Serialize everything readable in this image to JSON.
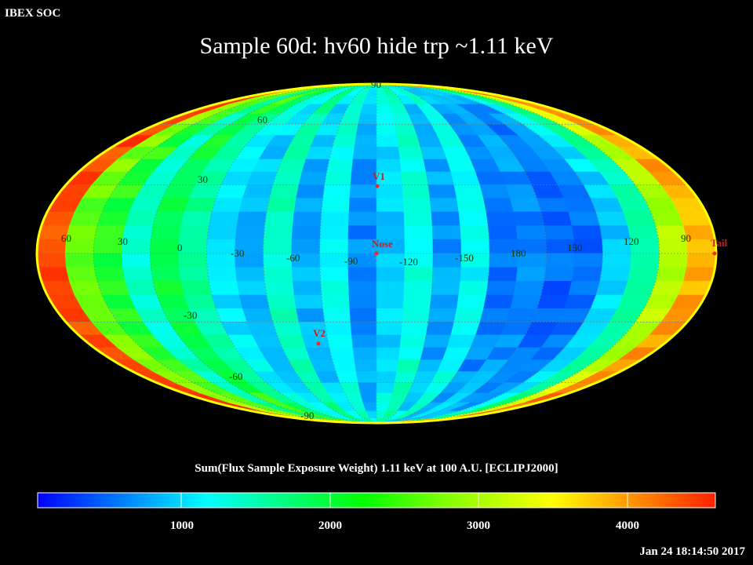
{
  "header": {
    "source_label": "IBEX SOC",
    "title": "Sample 60d: hv60 hide trp ~1.11 keV"
  },
  "map": {
    "projection": "Mollweide",
    "frame": "ECLIPJ2000",
    "longitude_labels": [
      "60",
      "30",
      "0",
      "-30",
      "-60",
      "-90",
      "-120",
      "-150",
      "180",
      "150",
      "120",
      "90"
    ],
    "latitude_labels": {
      "n90": "90",
      "n60": "60",
      "n30": "30",
      "s30": "-30",
      "s60": "-60",
      "s90": "-90"
    },
    "markers": [
      {
        "id": "v1",
        "label": "V1",
        "color": "#ff2020"
      },
      {
        "id": "nose",
        "label": "Nose",
        "color": "#ff2020"
      },
      {
        "id": "v2",
        "label": "V2",
        "color": "#ff2020"
      },
      {
        "id": "tail",
        "label": "Tail",
        "color": "#ff2020"
      }
    ],
    "grid": true,
    "low_flux_region": "right-center (ecliptic longitude ~180 to 150)"
  },
  "colorbar": {
    "caption": "Sum(Flux Sample Exposure Weight)  1.11 keV at 100 A.U. [ECLIPJ2000]",
    "min": 0,
    "max": 4600,
    "ticks": [
      "1000",
      "2000",
      "3000",
      "4000"
    ],
    "colors": [
      "#0000ff",
      "#00ffff",
      "#00ff00",
      "#ffff00",
      "#ff0000"
    ]
  },
  "footer": {
    "timestamp": "Jan 24 18:14:50 2017"
  }
}
